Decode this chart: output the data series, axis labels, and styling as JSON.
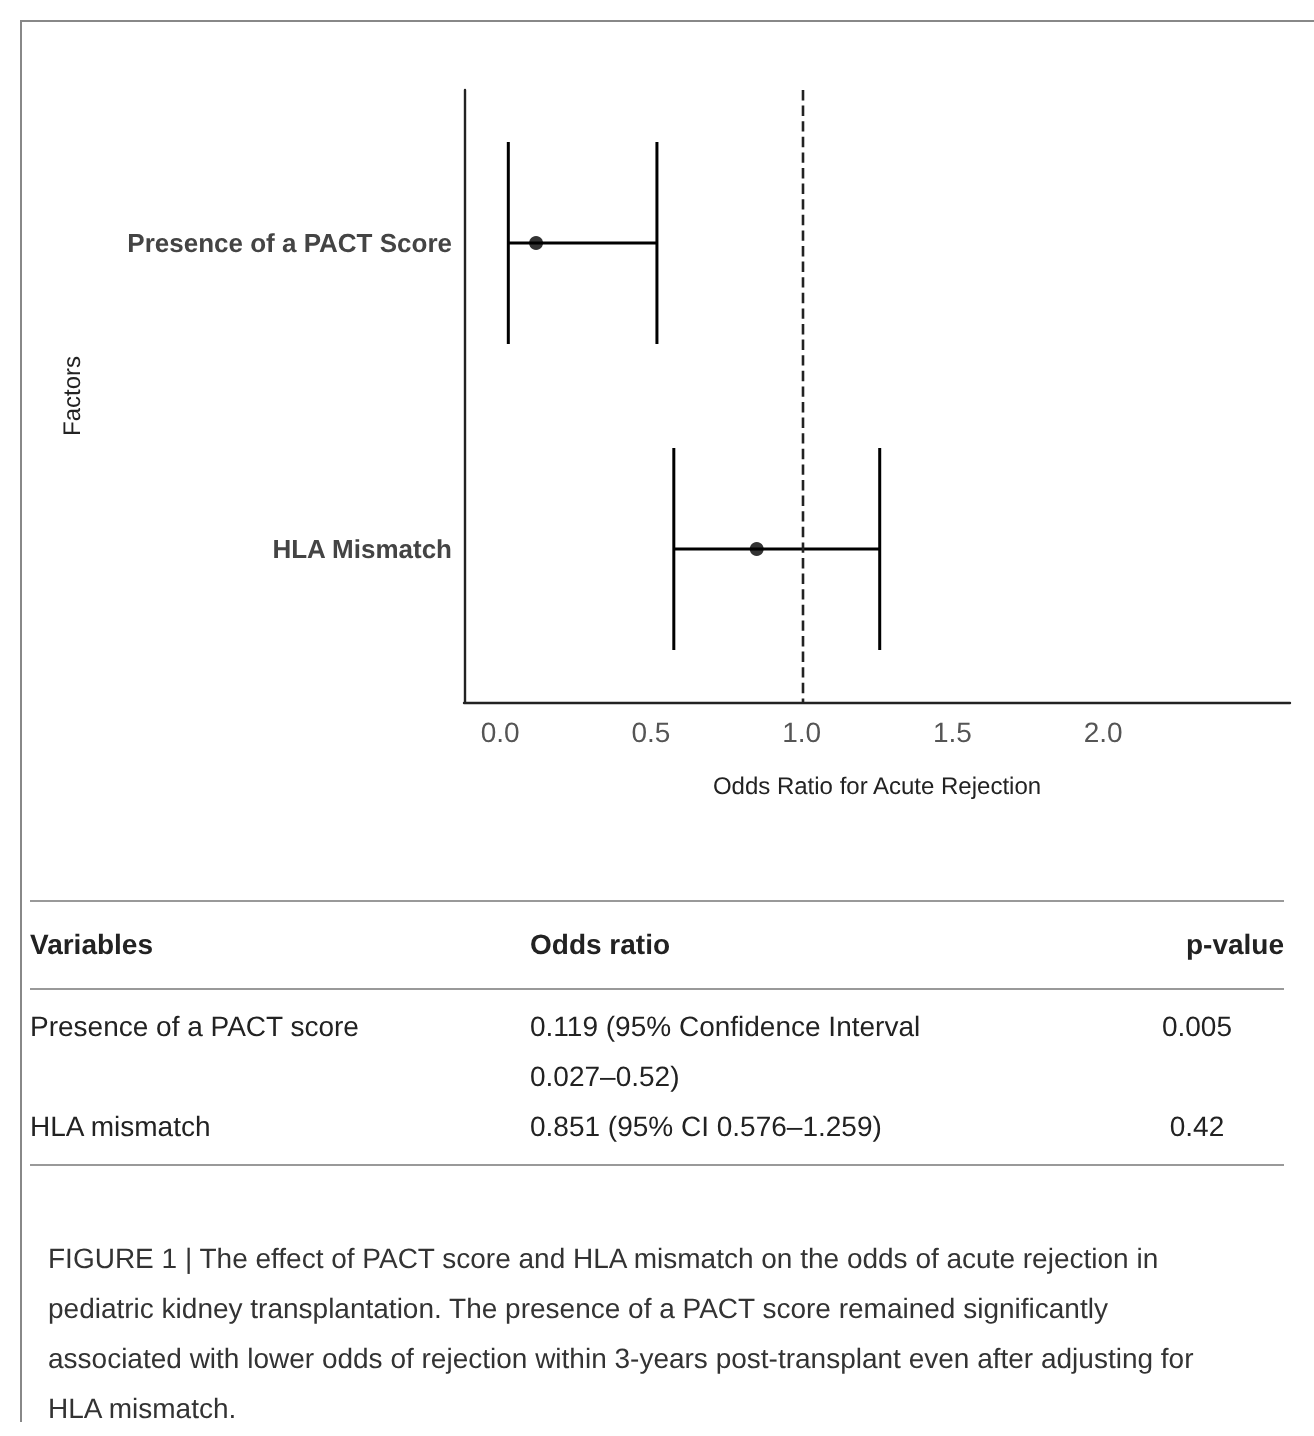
{
  "chart_data": {
    "type": "scatter",
    "orientation": "horizontal",
    "categories": [
      "Presence of a PACT Score",
      "HLA Mismatch"
    ],
    "values": [
      0.119,
      0.851
    ],
    "errors": [
      [
        0.027,
        0.52
      ],
      [
        0.576,
        1.259
      ]
    ],
    "color": "#000000",
    "marker": "circle",
    "xlim": [
      -0.12,
      2.62
    ],
    "xticks": [
      {
        "value": 0,
        "label": "0.0"
      },
      {
        "value": 0.5,
        "label": "0.5"
      },
      {
        "value": 1,
        "label": "1.0"
      },
      {
        "value": 1.5,
        "label": "1.5"
      },
      {
        "value": 2,
        "label": "2.0"
      }
    ],
    "xlabel": "Odds Ratio for Acute Rejection",
    "ylabel": "Factors",
    "ref_lines": [
      {
        "axis": "x",
        "value": 1,
        "line_style": "dashed"
      }
    ],
    "grid": false,
    "annotations": [
      "Variables",
      "Odds ratio",
      "p-value",
      "Presence of a PACT score",
      "0.119 (95% Confidence Interval 0.027–0.52)",
      "0.005",
      "HLA mismatch",
      "0.851 (95% CI 0.576–1.259)",
      "0.42",
      "FIGURE 1 | The effect of PACT score and HLA mismatch on the odds of acute rejection in pediatric kidney transplantation. The presence of a PACT score remained significantly associated with lower odds of rejection within 3-years post-transplant even after adjusting for HLA mismatch."
    ]
  }
}
